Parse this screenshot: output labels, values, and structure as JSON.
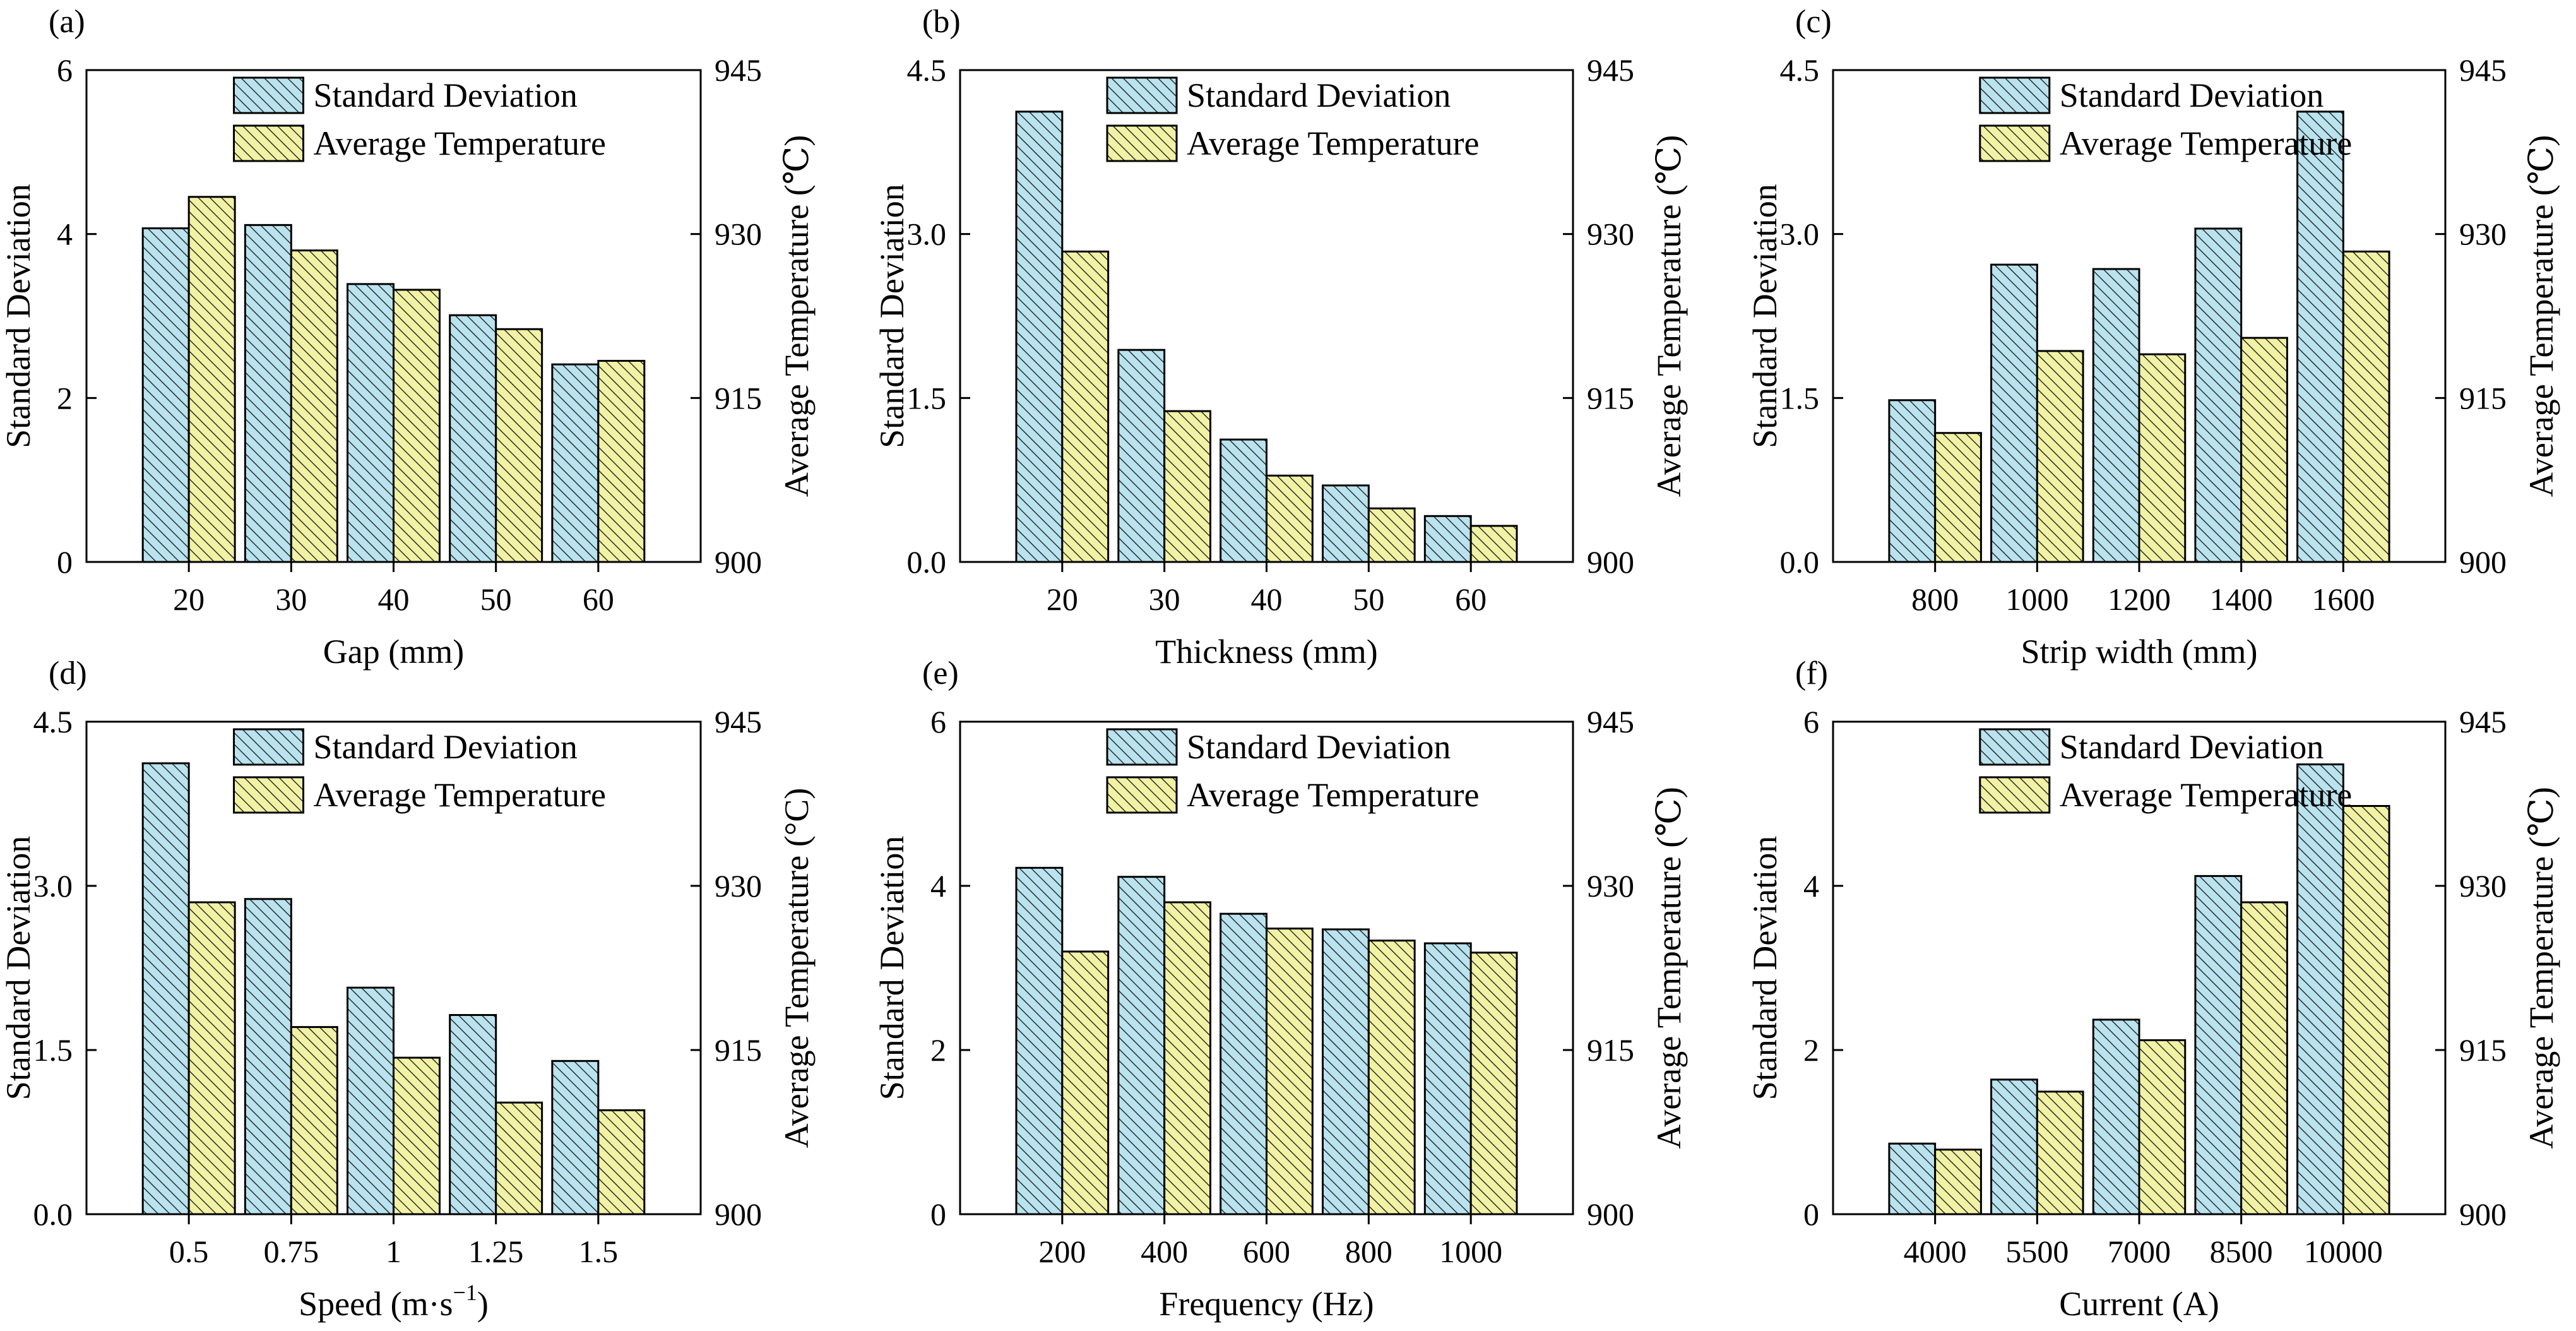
{
  "colors": {
    "std_fill": "#b9e3ef",
    "avg_fill": "#f2f2a4",
    "hatch": "#2b2b2b",
    "axis": "#000000"
  },
  "legend": {
    "std_label": "Standard Deviation",
    "avg_label": "Average Temperature"
  },
  "chart_data": [
    {
      "panel": "(a)",
      "type": "bar",
      "xlabel": "Gap (mm)",
      "ylabel": "Standard Deviation",
      "y2label": "Average Temperature (℃)",
      "categories": [
        "20",
        "30",
        "40",
        "50",
        "60"
      ],
      "ylim": [
        0,
        6
      ],
      "yticks": [
        "0",
        "2",
        "4",
        "6"
      ],
      "y2lim": [
        900,
        945
      ],
      "y2ticks": [
        "900",
        "915",
        "930",
        "945"
      ],
      "series": [
        {
          "name": "Standard Deviation",
          "axis": "left",
          "values": [
            4.07,
            4.11,
            3.39,
            3.01,
            2.41
          ]
        },
        {
          "name": "Average Temperature",
          "axis": "right",
          "values": [
            933.4,
            928.5,
            924.9,
            921.3,
            918.4
          ]
        }
      ]
    },
    {
      "panel": "(b)",
      "type": "bar",
      "xlabel": "Thickness (mm)",
      "ylabel": "Standard Deviation",
      "y2label": "Average Temperature (℃)",
      "categories": [
        "20",
        "30",
        "40",
        "50",
        "60"
      ],
      "ylim": [
        0,
        4.5
      ],
      "yticks": [
        "0.0",
        "1.5",
        "3.0",
        "4.5"
      ],
      "y2lim": [
        900,
        945
      ],
      "y2ticks": [
        "900",
        "915",
        "930",
        "945"
      ],
      "series": [
        {
          "name": "Standard Deviation",
          "axis": "left",
          "values": [
            4.12,
            1.94,
            1.12,
            0.7,
            0.42
          ]
        },
        {
          "name": "Average Temperature",
          "axis": "right",
          "values": [
            928.4,
            913.8,
            907.9,
            904.9,
            903.3
          ]
        }
      ]
    },
    {
      "panel": "(c)",
      "type": "bar",
      "xlabel": "Strip width (mm)",
      "ylabel": "Standard Deviation",
      "y2label": "Average Temperature (℃)",
      "categories": [
        "800",
        "1000",
        "1200",
        "1400",
        "1600"
      ],
      "ylim": [
        0,
        4.5
      ],
      "yticks": [
        "0.0",
        "1.5",
        "3.0",
        "4.5"
      ],
      "y2lim": [
        900,
        945
      ],
      "y2ticks": [
        "900",
        "915",
        "930",
        "945"
      ],
      "series": [
        {
          "name": "Standard Deviation",
          "axis": "left",
          "values": [
            1.48,
            2.72,
            2.68,
            3.05,
            4.12
          ]
        },
        {
          "name": "Average Temperature",
          "axis": "right",
          "values": [
            911.8,
            919.3,
            919.0,
            920.5,
            928.4
          ]
        }
      ]
    },
    {
      "panel": "(d)",
      "type": "bar",
      "xlabel": "Speed (m·s",
      "xlabel_sup": "−1",
      "xlabel_end": ")",
      "ylabel": "Standard Deviation",
      "y2label": "Average Temperature (°C)",
      "categories": [
        "0.5",
        "0.75",
        "1",
        "1.25",
        "1.5"
      ],
      "ylim": [
        0,
        4.5
      ],
      "yticks": [
        "0.0",
        "1.5",
        "3.0",
        "4.5"
      ],
      "y2lim": [
        900,
        945
      ],
      "y2ticks": [
        "900",
        "915",
        "930",
        "945"
      ],
      "series": [
        {
          "name": "Standard Deviation",
          "axis": "left",
          "values": [
            4.12,
            2.88,
            2.07,
            1.82,
            1.4
          ]
        },
        {
          "name": "Average Temperature",
          "axis": "right",
          "values": [
            928.5,
            917.1,
            914.3,
            910.2,
            909.5
          ]
        }
      ]
    },
    {
      "panel": "(e)",
      "type": "bar",
      "xlabel": "Frequency (Hz)",
      "ylabel": "Standard Deviation",
      "y2label": "Average Temperature (℃)",
      "categories": [
        "200",
        "400",
        "600",
        "800",
        "1000"
      ],
      "ylim": [
        0,
        6
      ],
      "yticks": [
        "0",
        "2",
        "4",
        "6"
      ],
      "y2lim": [
        900,
        945
      ],
      "y2ticks": [
        "900",
        "915",
        "930",
        "945"
      ],
      "series": [
        {
          "name": "Standard Deviation",
          "axis": "left",
          "values": [
            4.22,
            4.11,
            3.66,
            3.47,
            3.3
          ]
        },
        {
          "name": "Average Temperature",
          "axis": "right",
          "values": [
            924.0,
            928.5,
            926.1,
            925.0,
            923.9
          ]
        }
      ]
    },
    {
      "panel": "(f)",
      "type": "bar",
      "xlabel": "Current (A)",
      "ylabel": "Standard Deviation",
      "y2label": "Average Temperature (℃)",
      "categories": [
        "4000",
        "5500",
        "7000",
        "8500",
        "10000"
      ],
      "ylim": [
        0,
        6
      ],
      "yticks": [
        "0",
        "2",
        "4",
        "6"
      ],
      "y2lim": [
        900,
        945
      ],
      "y2ticks": [
        "900",
        "915",
        "930",
        "945"
      ],
      "series": [
        {
          "name": "Standard Deviation",
          "axis": "left",
          "values": [
            0.86,
            1.64,
            2.37,
            4.12,
            5.48
          ]
        },
        {
          "name": "Average Temperature",
          "axis": "right",
          "values": [
            905.9,
            911.2,
            915.9,
            928.5,
            937.3
          ]
        }
      ]
    }
  ]
}
